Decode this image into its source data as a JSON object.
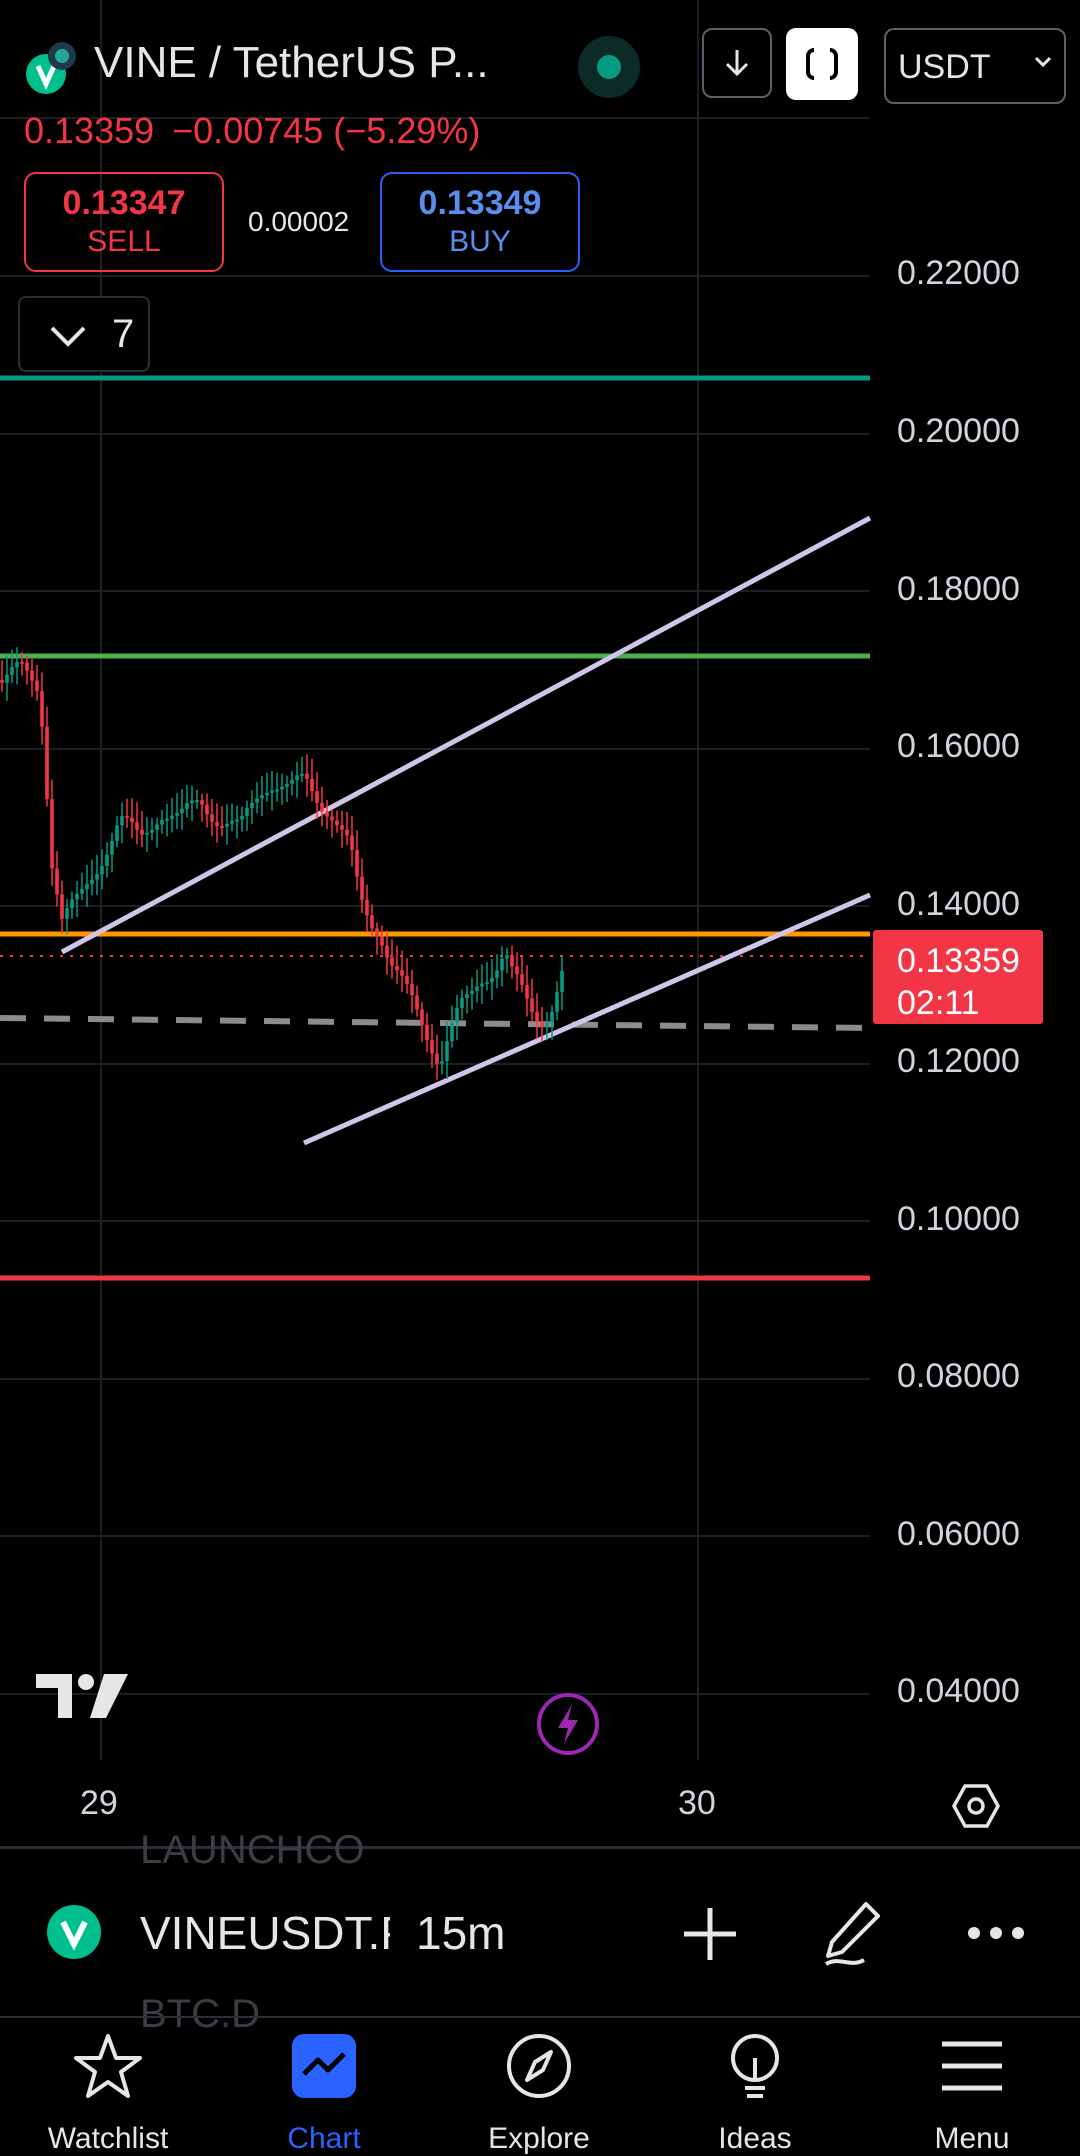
{
  "header": {
    "title": "VINE / TetherUS P...",
    "currency": "USDT",
    "last_price": "0.13359",
    "change": "−0.00745 (−5.29%)",
    "sell_price": "0.13347",
    "sell_label": "SELL",
    "spread": "0.00002",
    "buy_price": "0.13349",
    "buy_label": "BUY",
    "indicators_count": "7"
  },
  "chart_data": {
    "type": "candlestick",
    "interval": "15m",
    "y_ticks": [
      "0.22000",
      "0.20000",
      "0.18000",
      "0.16000",
      "0.14000",
      "0.12000",
      "0.10000",
      "0.08000",
      "0.06000",
      "0.04000"
    ],
    "x_ticks": [
      "29",
      "30"
    ],
    "current_price_label": "0.13359",
    "countdown": "02:11",
    "horizontal_levels": [
      {
        "price": 0.207,
        "color": "#089981"
      },
      {
        "price": 0.1715,
        "color": "#4caf50"
      },
      {
        "price": 0.1355,
        "color": "#ff9800"
      },
      {
        "price": 0.0925,
        "color": "#f23645"
      }
    ],
    "colors": {
      "up": "#089981",
      "down": "#f23645",
      "channel": "#d1c4e9",
      "dashed": "#8c8c8c"
    }
  },
  "symbol_bar": {
    "symbol": "VINEUSDT.P",
    "interval": "15m",
    "faded_above": "LAUNCHCO",
    "faded_below": "BTC.D"
  },
  "nav": {
    "items": [
      {
        "label": "Watchlist"
      },
      {
        "label": "Chart"
      },
      {
        "label": "Explore"
      },
      {
        "label": "Ideas"
      },
      {
        "label": "Menu"
      }
    ]
  }
}
